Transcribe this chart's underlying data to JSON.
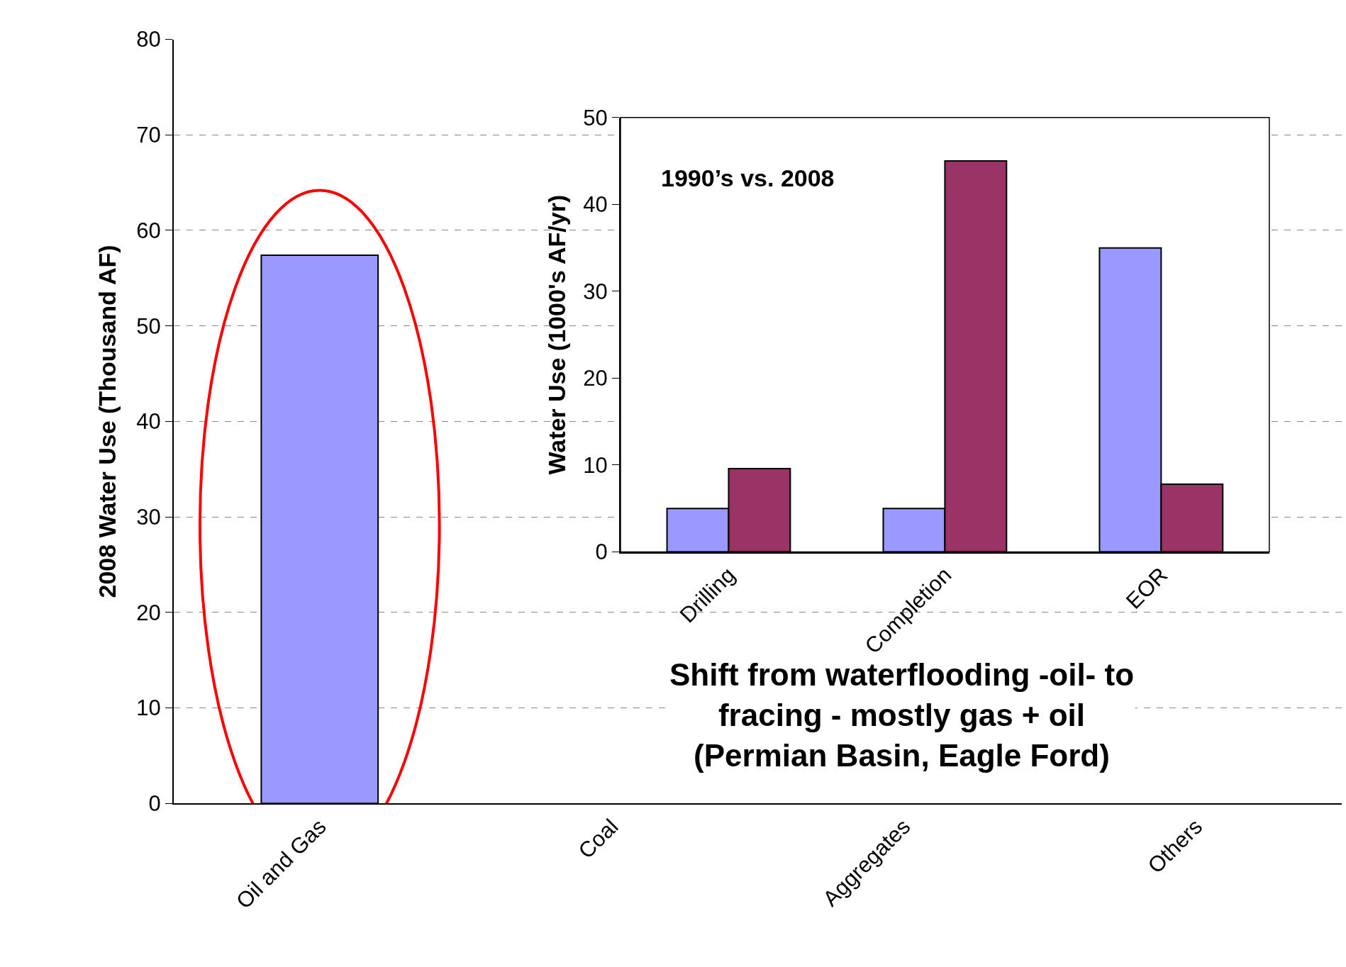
{
  "chart_data": [
    {
      "type": "bar",
      "ylabel": "2008 Water Use (Thousand AF)",
      "categories": [
        "Oil and Gas",
        "Coal",
        "Aggregates",
        "Others"
      ],
      "series": [
        {
          "color": "#9999ff",
          "values": [
            57.4,
            null,
            null,
            null
          ]
        }
      ],
      "ylim": [
        0,
        80
      ],
      "yticks": [
        0,
        10,
        20,
        30,
        40,
        50,
        60,
        70,
        80
      ],
      "grid": "y",
      "line_style": "dashed",
      "annotations": [
        "Shift from waterflooding -oil- to\nfracing - mostly gas + oil\n(Permian Basin, Eagle Ford)"
      ]
    },
    {
      "type": "bar",
      "ylabel": "Water Use (1000's AF/yr)",
      "categories": [
        "Drilling",
        "Completion",
        "EOR"
      ],
      "series": [
        {
          "color": "#9999ff",
          "values": [
            5,
            5,
            35
          ]
        },
        {
          "color": "#993366",
          "values": [
            9.6,
            45,
            7.8
          ]
        }
      ],
      "ylim": [
        0,
        50
      ],
      "yticks": [
        0,
        10,
        20,
        30,
        40,
        50
      ],
      "grid": "y",
      "line_style": "solid",
      "annotations": [
        "1990’s vs. 2008"
      ]
    }
  ]
}
